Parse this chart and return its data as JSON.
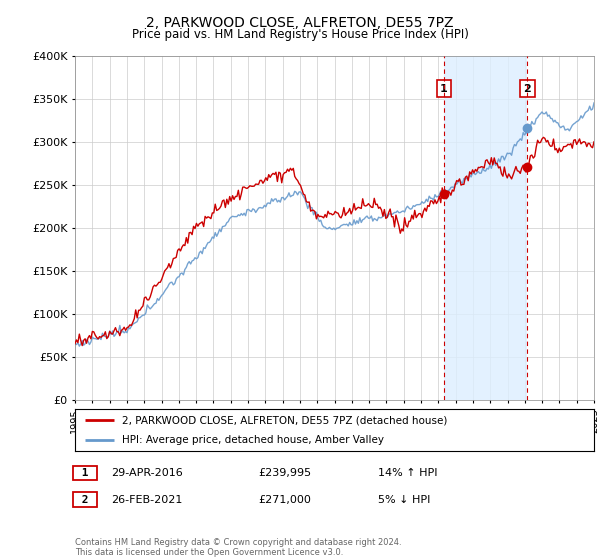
{
  "title_line1": "2, PARKWOOD CLOSE, ALFRETON, DE55 7PZ",
  "title_line2": "Price paid vs. HM Land Registry's House Price Index (HPI)",
  "ylabel_ticks": [
    "£0",
    "£50K",
    "£100K",
    "£150K",
    "£200K",
    "£250K",
    "£300K",
    "£350K",
    "£400K"
  ],
  "ylim": [
    0,
    400000
  ],
  "ytick_vals": [
    0,
    50000,
    100000,
    150000,
    200000,
    250000,
    300000,
    350000,
    400000
  ],
  "x_start_year": 1995,
  "x_end_year": 2025,
  "hpi_color": "#6699cc",
  "price_color": "#cc0000",
  "shade_color": "#ddeeff",
  "marker1_x": 2016.33,
  "marker2_x": 2021.15,
  "marker1_price": 239995,
  "marker2_price": 271000,
  "legend_entry1": "2, PARKWOOD CLOSE, ALFRETON, DE55 7PZ (detached house)",
  "legend_entry2": "HPI: Average price, detached house, Amber Valley",
  "sale1_date": "29-APR-2016",
  "sale1_price": "£239,995",
  "sale1_hpi": "14% ↑ HPI",
  "sale2_date": "26-FEB-2021",
  "sale2_price": "£271,000",
  "sale2_hpi": "5% ↓ HPI",
  "footer": "Contains HM Land Registry data © Crown copyright and database right 2024.\nThis data is licensed under the Open Government Licence v3.0.",
  "background_color": "#ffffff",
  "grid_color": "#cccccc"
}
